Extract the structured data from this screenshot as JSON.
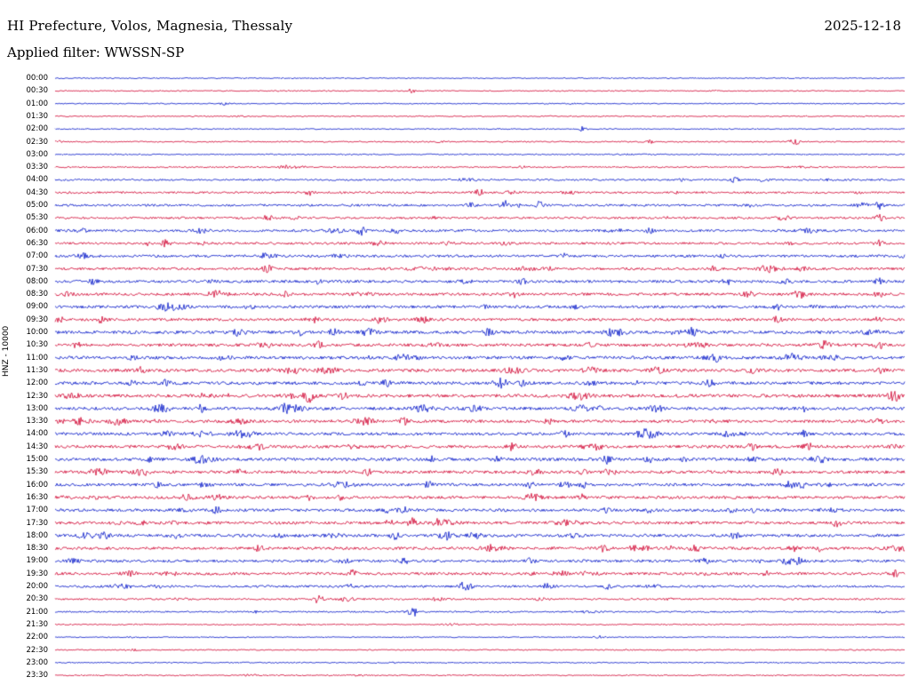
{
  "header": {
    "title": "HI Prefecture, Volos, Magnesia, Thessaly",
    "date": "2025-12-18",
    "filter": "Applied filter: WWSSN-SP"
  },
  "axis": {
    "side_label": "HNZ - 10000"
  },
  "chart_data": {
    "type": "line",
    "title": "24-hour helicorder seismogram",
    "station_region": "HI Prefecture, Volos, Magnesia, Thessaly",
    "date": "2025-12-18",
    "filter": "WWSSN-SP",
    "gain_label": "HNZ - 10000",
    "row_minutes": 30,
    "trace_colors": [
      "#0014c8",
      "#d10030"
    ],
    "rows": [
      {
        "t": "00:00",
        "a": 0.08
      },
      {
        "t": "00:30",
        "a": 0.08,
        "e": [
          [
            0.42,
            1.2
          ]
        ]
      },
      {
        "t": "01:00",
        "a": 0.09,
        "e": [
          [
            0.2,
            1.0
          ]
        ]
      },
      {
        "t": "01:30",
        "a": 0.1
      },
      {
        "t": "02:00",
        "a": 0.08,
        "e": [
          [
            0.62,
            1.2
          ]
        ]
      },
      {
        "t": "02:30",
        "a": 0.12,
        "e": [
          [
            0.7,
            1.0
          ],
          [
            0.87,
            2.2
          ]
        ]
      },
      {
        "t": "03:00",
        "a": 0.1
      },
      {
        "t": "03:30",
        "a": 0.14,
        "e": [
          [
            0.27,
            1.5
          ],
          [
            0.55,
            1.0
          ]
        ]
      },
      {
        "t": "04:00",
        "a": 0.22,
        "e": [
          [
            0.8,
            1.5
          ]
        ]
      },
      {
        "t": "04:30",
        "a": 0.26,
        "e": [
          [
            0.3,
            1.2
          ],
          [
            0.5,
            1.8
          ]
        ]
      },
      {
        "t": "05:00",
        "a": 0.3,
        "e": [
          [
            0.53,
            2.2
          ],
          [
            0.57,
            1.5
          ],
          [
            0.97,
            1.8
          ]
        ]
      },
      {
        "t": "05:30",
        "a": 0.28,
        "e": [
          [
            0.25,
            1.5
          ],
          [
            0.97,
            1.8
          ]
        ]
      },
      {
        "t": "06:00",
        "a": 0.32,
        "e": [
          [
            0.36,
            2.2
          ],
          [
            0.4,
            1.8
          ],
          [
            0.7,
            1.2
          ]
        ]
      },
      {
        "t": "06:30",
        "a": 0.3,
        "e": [
          [
            0.13,
            1.8
          ],
          [
            0.53,
            2.0
          ],
          [
            0.97,
            1.5
          ]
        ]
      },
      {
        "t": "07:00",
        "a": 0.34,
        "e": [
          [
            0.25,
            1.5
          ],
          [
            0.6,
            1.2
          ]
        ]
      },
      {
        "t": "07:30",
        "a": 0.36,
        "e": [
          [
            0.25,
            2.0
          ],
          [
            0.58,
            1.4
          ],
          [
            0.88,
            1.4
          ]
        ]
      },
      {
        "t": "08:00",
        "a": 0.38,
        "e": [
          [
            0.55,
            1.4
          ],
          [
            0.97,
            1.6
          ]
        ]
      },
      {
        "t": "08:30",
        "a": 0.38,
        "e": [
          [
            0.27,
            1.5
          ],
          [
            0.54,
            1.5
          ],
          [
            0.97,
            1.6
          ]
        ]
      },
      {
        "t": "09:00",
        "a": 0.4,
        "e": [
          [
            0.23,
            1.6
          ],
          [
            0.85,
            1.3
          ]
        ]
      },
      {
        "t": "09:30",
        "a": 0.38,
        "e": [
          [
            0.85,
            1.5
          ],
          [
            0.97,
            1.5
          ]
        ]
      },
      {
        "t": "10:00",
        "a": 0.45,
        "e": [
          [
            0.29,
            1.5
          ],
          [
            0.51,
            1.8
          ],
          [
            0.75,
            1.3
          ]
        ]
      },
      {
        "t": "10:30",
        "a": 0.42,
        "e": [
          [
            0.31,
            1.6
          ],
          [
            0.63,
            1.5
          ],
          [
            0.97,
            1.8
          ]
        ]
      },
      {
        "t": "11:00",
        "a": 0.45,
        "e": [
          [
            0.09,
            1.5
          ],
          [
            0.6,
            1.5
          ],
          [
            0.78,
            1.3
          ]
        ]
      },
      {
        "t": "11:30",
        "a": 0.45,
        "e": [
          [
            0.1,
            1.6
          ],
          [
            0.82,
            2.0
          ]
        ]
      },
      {
        "t": "12:00",
        "a": 0.45,
        "e": [
          [
            0.13,
            1.6
          ],
          [
            0.39,
            1.7
          ],
          [
            0.63,
            1.4
          ]
        ]
      },
      {
        "t": "12:30",
        "a": 0.48,
        "e": [
          [
            0.3,
            2.2
          ],
          [
            0.34,
            1.8
          ],
          [
            0.99,
            2.0
          ]
        ]
      },
      {
        "t": "13:00",
        "a": 0.45,
        "e": [
          [
            0.27,
            2.0
          ],
          [
            0.64,
            1.4
          ],
          [
            0.88,
            1.5
          ]
        ]
      },
      {
        "t": "13:30",
        "a": 0.42,
        "e": [
          [
            0.41,
            1.8
          ],
          [
            0.58,
            1.4
          ],
          [
            0.97,
            1.5
          ]
        ]
      },
      {
        "t": "14:00",
        "a": 0.42,
        "e": [
          [
            0.6,
            2.0
          ],
          [
            0.88,
            1.6
          ]
        ]
      },
      {
        "t": "14:30",
        "a": 0.42,
        "e": [
          [
            0.24,
            1.8
          ],
          [
            0.82,
            1.8
          ],
          [
            0.89,
            1.5
          ]
        ]
      },
      {
        "t": "15:00",
        "a": 0.45,
        "e": [
          [
            0.52,
            1.4
          ],
          [
            0.65,
            2.0
          ]
        ]
      },
      {
        "t": "15:30",
        "a": 0.42,
        "e": [
          [
            0.62,
            1.5
          ],
          [
            0.85,
            1.8
          ]
        ]
      },
      {
        "t": "16:00",
        "a": 0.4,
        "e": [
          [
            0.12,
            1.5
          ],
          [
            0.44,
            1.6
          ],
          [
            0.56,
            1.6
          ],
          [
            0.62,
            1.8
          ],
          [
            0.88,
            1.7
          ]
        ]
      },
      {
        "t": "16:30",
        "a": 0.4,
        "e": [
          [
            0.3,
            1.4
          ],
          [
            0.62,
            1.5
          ]
        ]
      },
      {
        "t": "17:00",
        "a": 0.4,
        "e": [
          [
            0.19,
            1.6
          ],
          [
            0.41,
            1.5
          ],
          [
            0.65,
            1.4
          ]
        ]
      },
      {
        "t": "17:30",
        "a": 0.42,
        "e": [
          [
            0.42,
            2.4
          ],
          [
            0.92,
            1.8
          ]
        ]
      },
      {
        "t": "18:00",
        "a": 0.42,
        "e": [
          [
            0.4,
            2.0
          ],
          [
            0.46,
            1.8
          ],
          [
            0.61,
            1.4
          ],
          [
            0.8,
            1.4
          ]
        ]
      },
      {
        "t": "18:30",
        "a": 0.4,
        "e": [
          [
            0.24,
            1.8
          ],
          [
            0.87,
            2.0
          ],
          [
            0.9,
            1.8
          ]
        ]
      },
      {
        "t": "19:00",
        "a": 0.38,
        "e": [
          [
            0.41,
            1.8
          ],
          [
            0.56,
            1.4
          ],
          [
            0.86,
            1.5
          ]
        ]
      },
      {
        "t": "19:30",
        "a": 0.38,
        "e": [
          [
            0.35,
            1.8
          ],
          [
            0.56,
            1.5
          ],
          [
            0.99,
            1.8
          ]
        ]
      },
      {
        "t": "20:00",
        "a": 0.3,
        "e": [
          [
            0.48,
            1.8
          ],
          [
            0.58,
            1.8
          ],
          [
            0.65,
            1.4
          ]
        ]
      },
      {
        "t": "20:30",
        "a": 0.22,
        "e": [
          [
            0.31,
            2.2
          ],
          [
            0.45,
            1.2
          ]
        ]
      },
      {
        "t": "21:00",
        "a": 0.18,
        "e": [
          [
            0.42,
            3.6
          ]
        ]
      },
      {
        "t": "21:30",
        "a": 0.1
      },
      {
        "t": "22:00",
        "a": 0.08,
        "e": [
          [
            0.64,
            1.2
          ]
        ]
      },
      {
        "t": "22:30",
        "a": 0.1
      },
      {
        "t": "23:00",
        "a": 0.1
      },
      {
        "t": "23:30",
        "a": 0.1
      }
    ]
  }
}
